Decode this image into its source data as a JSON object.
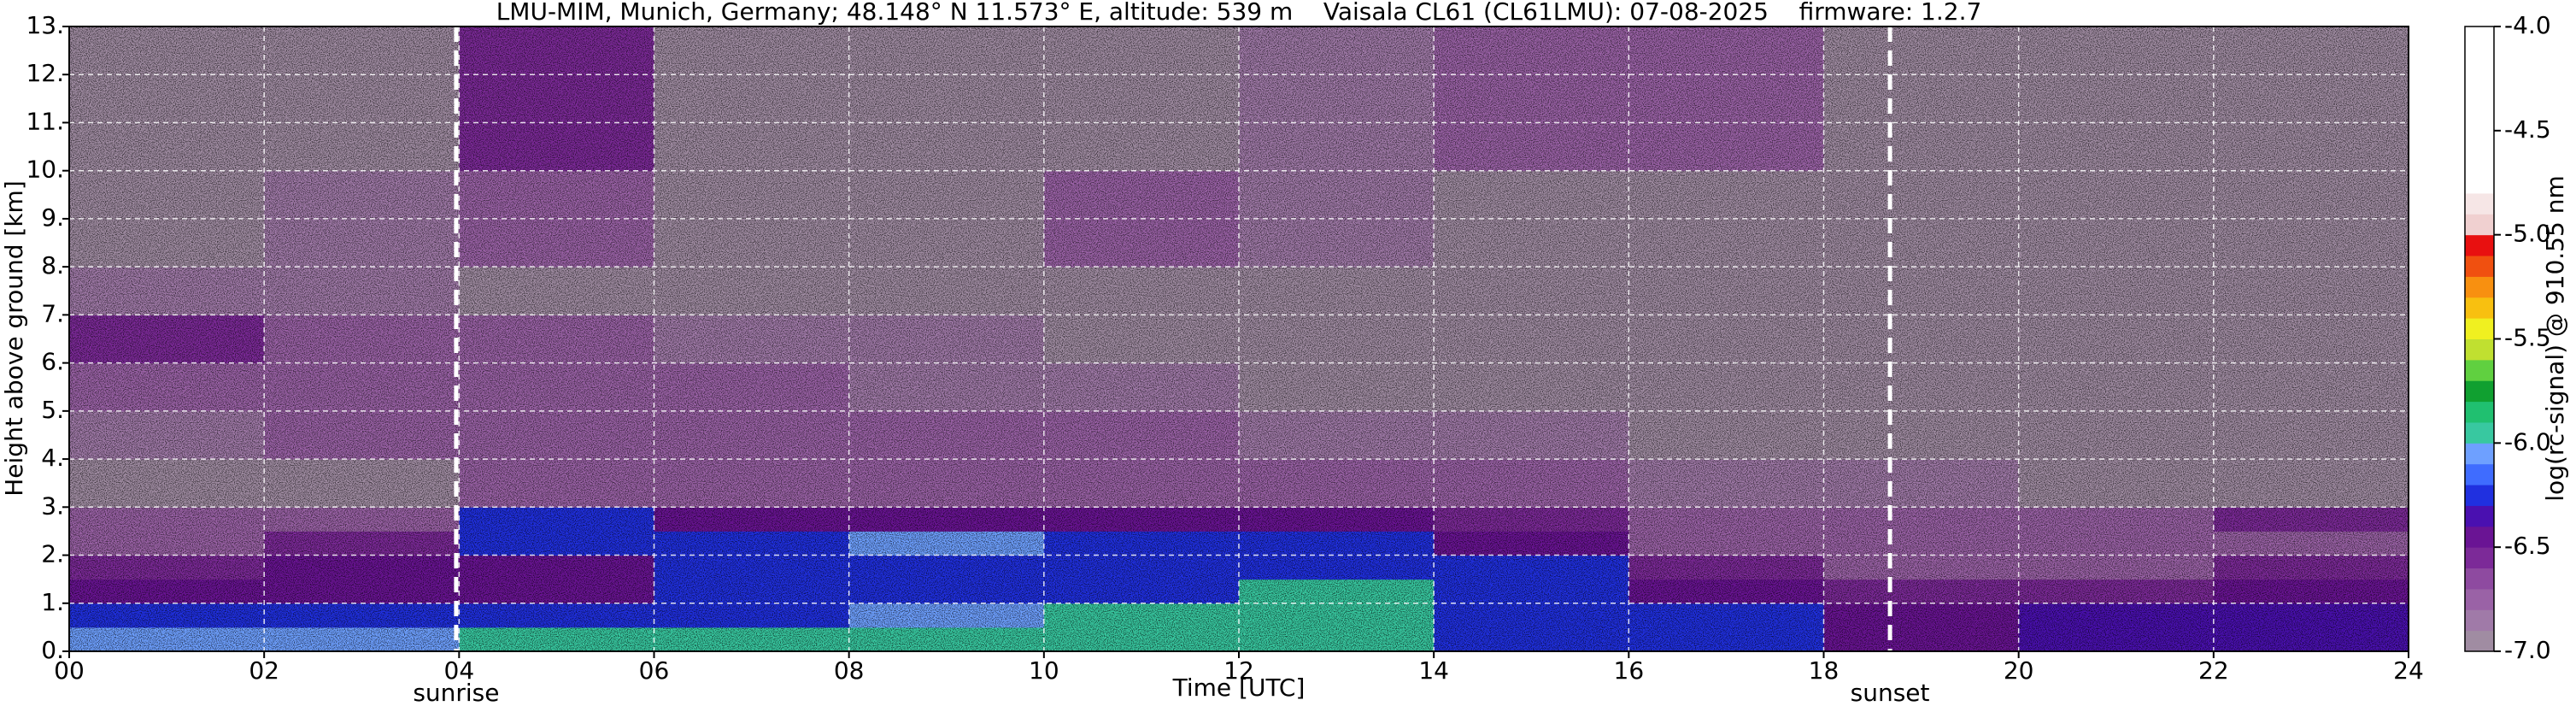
{
  "chart_data": {
    "type": "heatmap",
    "title": "LMU-MIM, Munich, Germany; 48.148° N 11.573° E, altitude: 539 m    Vaisala CL61 (CL61LMU): 07-08-2025    firmware: 1.2.7",
    "xlabel": "Time [UTC]",
    "ylabel": "Height above ground [km]",
    "xlim": [
      0,
      24
    ],
    "ylim": [
      0,
      13
    ],
    "xticks": [
      {
        "value": 0,
        "label": "00"
      },
      {
        "value": 2,
        "label": "02"
      },
      {
        "value": 4,
        "label": "04"
      },
      {
        "value": 6,
        "label": "06"
      },
      {
        "value": 8,
        "label": "08"
      },
      10,
      12,
      14,
      16,
      18,
      20,
      22,
      24
    ],
    "yticks": [
      {
        "value": 0,
        "label": "0."
      },
      {
        "value": 1,
        "label": "1."
      },
      {
        "value": 2,
        "label": "2."
      },
      {
        "value": 3,
        "label": "3."
      },
      {
        "value": 4,
        "label": "4."
      },
      {
        "value": 5,
        "label": "5."
      },
      {
        "value": 6,
        "label": "6."
      },
      {
        "value": 7,
        "label": "7."
      },
      {
        "value": 8,
        "label": "8."
      },
      {
        "value": 9,
        "label": "9."
      },
      {
        "value": 10,
        "label": "10."
      },
      {
        "value": 11,
        "label": "11."
      },
      {
        "value": 12,
        "label": "12."
      },
      {
        "value": 13,
        "label": "13."
      }
    ],
    "grid": true,
    "x_bins": [
      0,
      2,
      4,
      6,
      8,
      10,
      12,
      14,
      16,
      18,
      20,
      22,
      24
    ],
    "y_bins": [
      0,
      0.5,
      1,
      1.5,
      2,
      2.5,
      3,
      4,
      5,
      6,
      7,
      8,
      10,
      13
    ],
    "values": [
      [
        -6.1,
        -6.1,
        -6.0,
        -6.0,
        -6.0,
        -5.9,
        -5.95,
        -6.2,
        -6.3,
        -6.4,
        -6.35,
        -6.35
      ],
      [
        -6.3,
        -6.3,
        -6.2,
        -6.2,
        -6.1,
        -5.95,
        -5.95,
        -6.25,
        -6.3,
        -6.4,
        -6.35,
        -6.35
      ],
      [
        -6.5,
        -6.5,
        -6.4,
        -6.3,
        -6.3,
        -6.2,
        -5.95,
        -6.25,
        -6.45,
        -6.6,
        -6.6,
        -6.5
      ],
      [
        -6.6,
        -6.5,
        -6.4,
        -6.3,
        -6.2,
        -6.2,
        -6.2,
        -6.3,
        -6.6,
        -6.7,
        -6.7,
        -6.6
      ],
      [
        -6.7,
        -6.6,
        -6.3,
        -6.2,
        -6.1,
        -6.25,
        -6.3,
        -6.5,
        -6.7,
        -6.75,
        -6.75,
        -6.7
      ],
      [
        -6.75,
        -6.7,
        -6.3,
        -6.4,
        -6.4,
        -6.4,
        -6.5,
        -6.6,
        -6.8,
        -6.8,
        -6.75,
        -6.6
      ],
      [
        -6.95,
        -6.9,
        -6.8,
        -6.8,
        -6.8,
        -6.75,
        -6.8,
        -6.8,
        -6.85,
        -6.85,
        -6.9,
        -6.9
      ],
      [
        -6.85,
        -6.8,
        -6.7,
        -6.75,
        -6.8,
        -6.8,
        -6.85,
        -6.85,
        -6.9,
        -6.9,
        -6.9,
        -6.9
      ],
      [
        -6.7,
        -6.75,
        -6.7,
        -6.8,
        -6.85,
        -6.85,
        -6.9,
        -6.9,
        -6.9,
        -6.9,
        -6.9,
        -6.9
      ],
      [
        -6.6,
        -6.7,
        -6.8,
        -6.85,
        -6.85,
        -6.9,
        -6.9,
        -6.9,
        -6.9,
        -6.9,
        -6.9,
        -6.9
      ],
      [
        -6.85,
        -6.85,
        -6.9,
        -6.9,
        -6.9,
        -6.9,
        -6.9,
        -6.9,
        -6.9,
        -6.9,
        -6.9,
        -6.9
      ],
      [
        -6.9,
        -6.85,
        -6.8,
        -6.9,
        -6.9,
        -6.8,
        -6.85,
        -6.9,
        -6.9,
        -6.9,
        -6.9,
        -6.9
      ],
      [
        -6.9,
        -6.9,
        -6.6,
        -6.9,
        -6.9,
        -6.9,
        -6.85,
        -6.8,
        -6.75,
        -6.9,
        -6.9,
        -6.9
      ]
    ],
    "colorbar": {
      "label": "log(rc-signal) @ 910.55 nm",
      "clim": [
        -7,
        -4
      ],
      "ticks": [
        {
          "value": -4,
          "label": "-4.0"
        },
        -4.5,
        {
          "value": -5,
          "label": "-5.0"
        },
        -5.5,
        {
          "value": -6,
          "label": "-6.0"
        },
        -6.5,
        {
          "value": -7,
          "label": "-7.0"
        }
      ],
      "colors": [
        "#a08ca2",
        "#a07aa8",
        "#9a62a6",
        "#8e4aa0",
        "#7c2a98",
        "#6a1494",
        "#4a10b0",
        "#2030e0",
        "#3f6cff",
        "#6ea0ff",
        "#38c8a0",
        "#20c070",
        "#10a030",
        "#60d040",
        "#c0e030",
        "#f0f020",
        "#f8c010",
        "#f89010",
        "#f05010",
        "#e81010",
        "#f0d0d0",
        "#f6e6e6",
        "#ffffff",
        "#ffffff",
        "#ffffff",
        "#ffffff",
        "#ffffff",
        "#ffffff",
        "#ffffff",
        "#ffffff"
      ]
    },
    "events": [
      {
        "x": 3.97,
        "label": "sunrise"
      },
      {
        "x": 18.68,
        "label": "sunset"
      }
    ]
  }
}
